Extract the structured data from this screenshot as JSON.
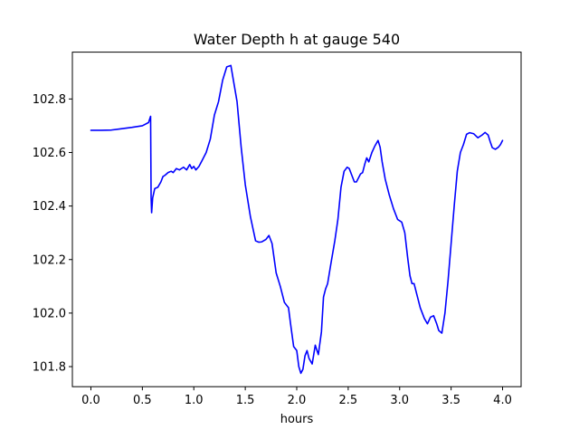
{
  "chart_data": {
    "type": "line",
    "title": "Water Depth h at gauge 540",
    "xlabel": "hours",
    "ylabel": "",
    "xlim": [
      -0.18,
      4.18
    ],
    "ylim": [
      101.725,
      102.975
    ],
    "xticks": [
      0.0,
      0.5,
      1.0,
      1.5,
      2.0,
      2.5,
      3.0,
      3.5,
      4.0
    ],
    "xtick_labels": [
      "0.0",
      "0.5",
      "1.0",
      "1.5",
      "2.0",
      "2.5",
      "3.0",
      "3.5",
      "4.0"
    ],
    "yticks": [
      101.8,
      102.0,
      102.2,
      102.4,
      102.6,
      102.8
    ],
    "ytick_labels": [
      "101.8",
      "102.0",
      "102.2",
      "102.4",
      "102.6",
      "102.8"
    ],
    "grid": false,
    "legend": "none",
    "series": [
      {
        "color": "#0000ff",
        "x": [
          0.0,
          0.1,
          0.2,
          0.3,
          0.4,
          0.5,
          0.56,
          0.58,
          0.585,
          0.59,
          0.6,
          0.62,
          0.65,
          0.68,
          0.7,
          0.72,
          0.75,
          0.78,
          0.8,
          0.83,
          0.86,
          0.9,
          0.93,
          0.96,
          0.98,
          1.0,
          1.02,
          1.05,
          1.08,
          1.12,
          1.16,
          1.2,
          1.24,
          1.28,
          1.32,
          1.36,
          1.38,
          1.42,
          1.46,
          1.5,
          1.55,
          1.6,
          1.63,
          1.66,
          1.7,
          1.73,
          1.76,
          1.8,
          1.84,
          1.88,
          1.92,
          1.94,
          1.97,
          2.0,
          2.02,
          2.04,
          2.06,
          2.08,
          2.1,
          2.12,
          2.15,
          2.18,
          2.21,
          2.24,
          2.26,
          2.28,
          2.3,
          2.33,
          2.37,
          2.4,
          2.43,
          2.46,
          2.49,
          2.51,
          2.53,
          2.56,
          2.58,
          2.6,
          2.62,
          2.64,
          2.66,
          2.68,
          2.7,
          2.73,
          2.76,
          2.79,
          2.81,
          2.83,
          2.86,
          2.9,
          2.94,
          2.98,
          3.02,
          3.05,
          3.08,
          3.1,
          3.12,
          3.14,
          3.16,
          3.2,
          3.24,
          3.27,
          3.3,
          3.33,
          3.36,
          3.38,
          3.41,
          3.44,
          3.47,
          3.5,
          3.53,
          3.56,
          3.59,
          3.62,
          3.65,
          3.68,
          3.72,
          3.76,
          3.8,
          3.83,
          3.86,
          3.88,
          3.9,
          3.93,
          3.96,
          3.98,
          4.0
        ],
        "y": [
          102.683,
          102.683,
          102.684,
          102.689,
          102.694,
          102.7,
          102.712,
          102.735,
          102.43,
          102.375,
          102.43,
          102.465,
          102.47,
          102.49,
          102.51,
          102.515,
          102.525,
          102.53,
          102.525,
          102.54,
          102.535,
          102.545,
          102.535,
          102.555,
          102.54,
          102.548,
          102.535,
          102.548,
          102.57,
          102.6,
          102.65,
          102.74,
          102.79,
          102.87,
          102.92,
          102.925,
          102.88,
          102.79,
          102.62,
          102.48,
          102.36,
          102.27,
          102.265,
          102.266,
          102.275,
          102.29,
          102.26,
          102.15,
          102.1,
          102.04,
          102.02,
          101.96,
          101.875,
          101.86,
          101.8,
          101.775,
          101.79,
          101.84,
          101.86,
          101.83,
          101.81,
          101.88,
          101.845,
          101.93,
          102.06,
          102.09,
          102.11,
          102.18,
          102.27,
          102.35,
          102.47,
          102.53,
          102.545,
          102.54,
          102.52,
          102.49,
          102.49,
          102.505,
          102.52,
          102.525,
          102.555,
          102.58,
          102.565,
          102.6,
          102.625,
          102.645,
          102.62,
          102.565,
          102.5,
          102.44,
          102.39,
          102.35,
          102.34,
          102.3,
          102.2,
          102.14,
          102.11,
          102.11,
          102.08,
          102.02,
          101.98,
          101.96,
          101.985,
          101.99,
          101.96,
          101.935,
          101.925,
          102.0,
          102.12,
          102.26,
          102.4,
          102.53,
          102.6,
          102.63,
          102.668,
          102.674,
          102.67,
          102.655,
          102.665,
          102.675,
          102.665,
          102.64,
          102.618,
          102.612,
          102.62,
          102.63,
          102.645
        ]
      }
    ]
  }
}
